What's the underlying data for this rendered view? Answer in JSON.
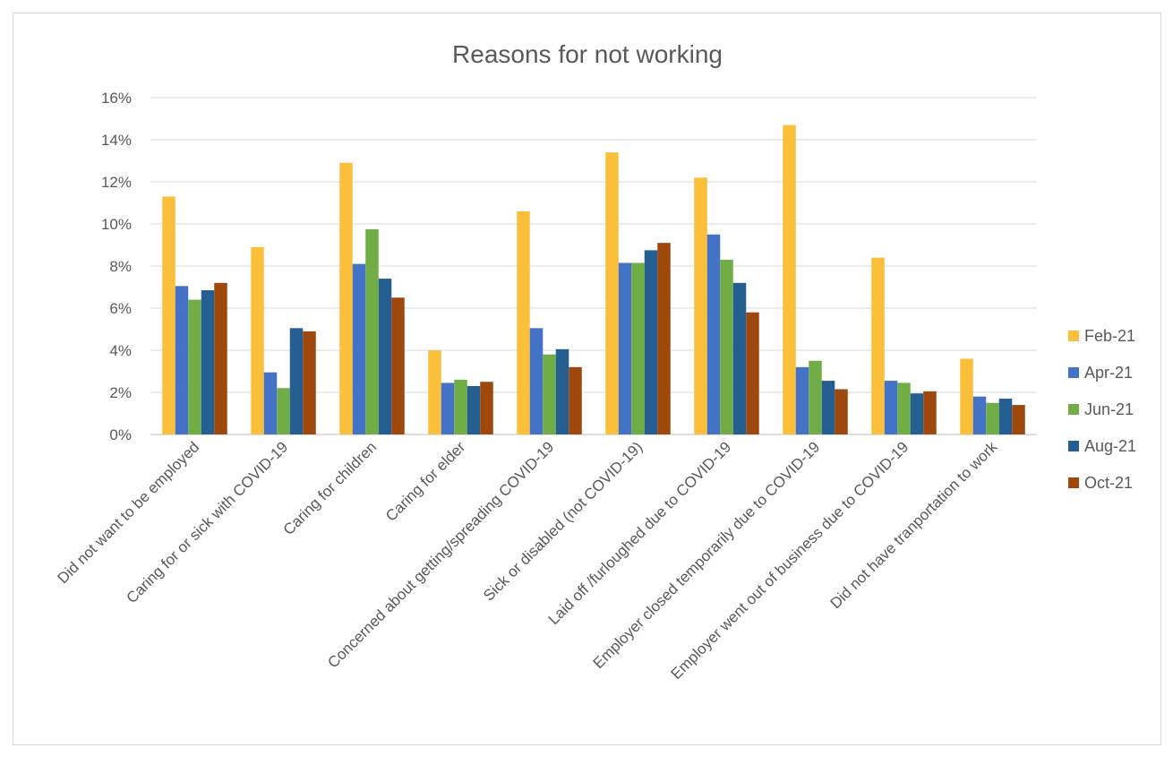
{
  "chart_data": {
    "type": "bar",
    "title": "Reasons for not working",
    "xlabel": "",
    "ylabel": "",
    "ylim": [
      0,
      16
    ],
    "yticks": [
      "0%",
      "2%",
      "4%",
      "6%",
      "8%",
      "10%",
      "12%",
      "14%",
      "16%"
    ],
    "grid": true,
    "legend_position": "right",
    "categories": [
      "Did not want to be employed",
      "Caring for or sick with COVID-19",
      "Caring for children",
      "Caring for elder",
      "Concerned about getting/spreading COVID-19",
      "Sick or disabled (not COVID-19)",
      "Laid off /furloughed due to COVID-19",
      "Employer closed temporarily due to COVID-19",
      "Employer went out of business due to COVID-19",
      "Did not have tranportation to work"
    ],
    "series": [
      {
        "name": "Feb-21",
        "color": "#FBBF3C",
        "values": [
          11.3,
          8.9,
          12.9,
          4.0,
          10.6,
          13.4,
          12.2,
          14.7,
          8.4,
          3.6
        ]
      },
      {
        "name": "Apr-21",
        "color": "#4472C4",
        "values": [
          7.05,
          2.95,
          8.1,
          2.45,
          5.05,
          8.15,
          9.5,
          3.2,
          2.55,
          1.8
        ]
      },
      {
        "name": "Jun-21",
        "color": "#70AD47",
        "values": [
          6.4,
          2.2,
          9.75,
          2.6,
          3.8,
          8.15,
          8.3,
          3.5,
          2.45,
          1.5
        ]
      },
      {
        "name": "Aug-21",
        "color": "#255E91",
        "values": [
          6.85,
          5.05,
          7.4,
          2.3,
          4.05,
          8.75,
          7.2,
          2.55,
          1.95,
          1.7
        ]
      },
      {
        "name": "Oct-21",
        "color": "#9E480E",
        "values": [
          7.2,
          4.9,
          6.5,
          2.5,
          3.2,
          9.1,
          5.8,
          2.15,
          2.05,
          1.4
        ]
      }
    ]
  }
}
